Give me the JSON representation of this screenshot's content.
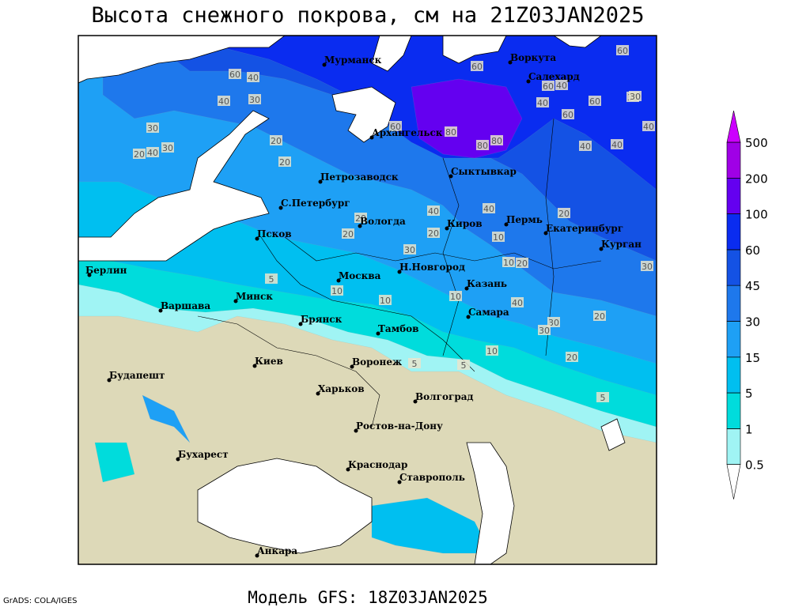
{
  "title": "Высота снежного покрова, см на 21Z03JAN2025",
  "subtitle": "Модель GFS: 18Z03JAN2025",
  "credit": "GrADS: COLA/IGES",
  "land_color": "#ddd9b8",
  "sea_color": "#ffffff",
  "legend": {
    "levels": [
      0.5,
      1,
      5,
      15,
      30,
      45,
      60,
      100,
      200,
      500
    ],
    "colors": [
      "#ffffff",
      "#a0f4f4",
      "#00dcdc",
      "#00bff0",
      "#1ea0f5",
      "#1e78ec",
      "#1452e4",
      "#0a2cf0",
      "#6400f0",
      "#a000e6",
      "#cc00ff"
    ]
  },
  "cities": [
    "Мурманск",
    "Воркута",
    "Салехард",
    "Архангельск",
    "Петрозаводск",
    "Сыктывкар",
    "С.Петербург",
    "Вологда",
    "Киров",
    "Пермь",
    "Екатеринбург",
    "Курган",
    "Псков",
    "Берлин",
    "Москва",
    "Н.Новгород",
    "Казань",
    "Минск",
    "Варшава",
    "Брянск",
    "Тамбов",
    "Самара",
    "Киев",
    "Воронеж",
    "Будапешт",
    "Харьков",
    "Волгоград",
    "Ростов-на-Дону",
    "Бухарест",
    "Краснодар",
    "Ставрополь",
    "Анкара"
  ],
  "contour_labels": [
    60,
    40,
    40,
    30,
    30,
    20,
    40,
    20,
    30,
    20,
    60,
    80,
    80,
    60,
    60,
    80,
    60,
    40,
    40,
    60,
    40,
    40,
    40,
    30,
    20,
    40,
    40,
    30,
    20,
    20,
    10,
    10,
    20,
    30,
    40,
    30,
    20,
    10,
    10,
    10,
    5,
    20,
    5,
    10,
    5,
    5,
    20,
    30,
    60,
    30
  ]
}
